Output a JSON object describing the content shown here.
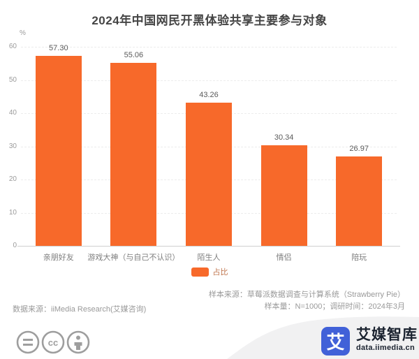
{
  "title": "2024年中国网民开黑体验共享主要参与对象",
  "chart_data": {
    "type": "bar",
    "categories": [
      "亲朋好友",
      "游戏大神（与自己不认识）",
      "陌生人",
      "情侣",
      "陪玩"
    ],
    "values": [
      57.3,
      55.06,
      43.26,
      30.34,
      26.97
    ],
    "value_labels": [
      "57.30",
      "55.06",
      "43.26",
      "30.34",
      "26.97"
    ],
    "title": "2024年中国网民开黑体验共享主要参与对象",
    "xlabel": "",
    "ylabel": "%",
    "ylim": [
      0,
      60
    ],
    "yticks": [
      0,
      10,
      20,
      30,
      40,
      50,
      60
    ],
    "grid": "dashed-horizontal",
    "bar_color": "#f7692a",
    "legend": {
      "label": "占比",
      "color": "#f7692a",
      "position": "bottom-center"
    }
  },
  "unit_label": "%",
  "legend_label": "占比",
  "footer": {
    "data_source": "数据来源：iiMedia Research(艾媒咨询)",
    "sample_source": "样本来源：草莓派数据调查与计算系统（Strawberry Pie）",
    "sample_info": "样本量：N=1000；调研时间：2024年3月"
  },
  "branding": {
    "logo_char": "艾",
    "name": "艾媒智库",
    "domain": "data.iimedia.cn",
    "logo_color": "#4161d8"
  },
  "colors": {
    "bar": "#f7692a",
    "title_text": "#454545",
    "axis_text": "#9a9a9a",
    "footer_text": "#999999",
    "wave": "#f1f1f2",
    "license_icon": "#9e9e9e"
  }
}
